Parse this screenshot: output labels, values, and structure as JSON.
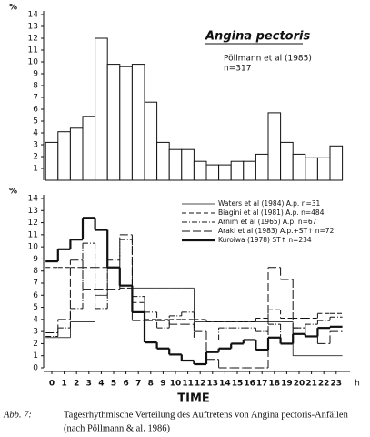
{
  "chart_data": [
    {
      "type": "bar",
      "title": "Angina pectoris",
      "subtitle": "Pöllmann et al (1985)",
      "annotation": "n=317",
      "ylabel": "%",
      "ylim": [
        0,
        14
      ],
      "yticks": [
        1,
        2,
        3,
        4,
        5,
        6,
        7,
        8,
        9,
        10,
        11,
        12,
        13,
        14
      ],
      "color": "#ffffff",
      "values": [
        3.2,
        4.1,
        4.4,
        5.4,
        12.0,
        9.8,
        9.6,
        9.8,
        6.6,
        3.2,
        2.6,
        2.6,
        1.6,
        1.3,
        1.3,
        1.6,
        1.6,
        2.2,
        5.7,
        3.2,
        2.2,
        1.9,
        1.9,
        2.9
      ]
    },
    {
      "type": "step",
      "ylabel": "%",
      "xlabel": "TIME",
      "x_unit": "h",
      "ylim": [
        0,
        14
      ],
      "yticks": [
        0,
        1,
        2,
        3,
        4,
        5,
        6,
        7,
        8,
        9,
        10,
        11,
        12,
        13,
        14
      ],
      "x": [
        0,
        1,
        2,
        3,
        4,
        5,
        6,
        7,
        8,
        9,
        10,
        11,
        12,
        13,
        14,
        15,
        16,
        17,
        18,
        19,
        20,
        21,
        22,
        23
      ],
      "series": [
        {
          "name": "Waters et al (1984) A.p. n=31",
          "color": "#111111",
          "style": "thin",
          "values": [
            2.5,
            2.5,
            3.8,
            3.8,
            6.0,
            9.0,
            9.0,
            6.6,
            6.6,
            6.6,
            6.6,
            6.6,
            3.8,
            3.8,
            3.8,
            3.8,
            3.8,
            3.8,
            3.8,
            3.8,
            1.0,
            1.0,
            1.0,
            1.0
          ]
        },
        {
          "name": "Biagini et al (1981) A.p. n=484",
          "color": "#111111",
          "style": "dashed",
          "values": [
            8.3,
            8.3,
            8.3,
            8.3,
            8.3,
            8.3,
            6.6,
            5.4,
            4.0,
            4.0,
            4.0,
            4.0,
            4.0,
            3.8,
            3.8,
            3.8,
            3.8,
            4.1,
            4.8,
            4.1,
            4.1,
            4.1,
            4.5,
            4.5
          ]
        },
        {
          "name": "Arnim et al (1965) A.p. n=67",
          "color": "#111111",
          "style": "dashdot",
          "values": [
            2.6,
            3.3,
            4.9,
            10.3,
            4.9,
            8.9,
            10.6,
            5.9,
            4.6,
            3.3,
            4.3,
            4.6,
            2.3,
            2.3,
            3.3,
            3.3,
            3.3,
            3.0,
            3.6,
            2.0,
            3.3,
            3.6,
            3.9,
            4.2
          ]
        },
        {
          "name": "Araki et al (1983) A.p.+ST↑ n=72",
          "color": "#111111",
          "style": "longdash",
          "values": [
            2.9,
            4.0,
            8.9,
            6.5,
            6.5,
            6.5,
            11.0,
            3.9,
            3.9,
            3.9,
            3.6,
            3.6,
            3.0,
            0.7,
            0.0,
            0.0,
            0.0,
            0.0,
            8.3,
            7.3,
            3.3,
            2.6,
            2.0,
            3.0
          ]
        },
        {
          "name": "Kuroiwa (1978) ST↑ n=234",
          "color": "#111111",
          "style": "thick",
          "values": [
            8.8,
            9.8,
            10.6,
            12.4,
            11.4,
            8.3,
            6.8,
            4.6,
            2.1,
            1.6,
            1.1,
            0.6,
            0.3,
            1.3,
            1.6,
            2.0,
            2.3,
            1.5,
            2.5,
            2.0,
            2.8,
            2.6,
            3.3,
            3.4
          ]
        }
      ]
    }
  ],
  "caption": {
    "label": "Abb. 7:",
    "line1": "Tagesrhythmische Verteilung des Auftretens von Angina pectoris-Anfällen",
    "line2": "(nach Pöllmann & al. 1986)"
  }
}
